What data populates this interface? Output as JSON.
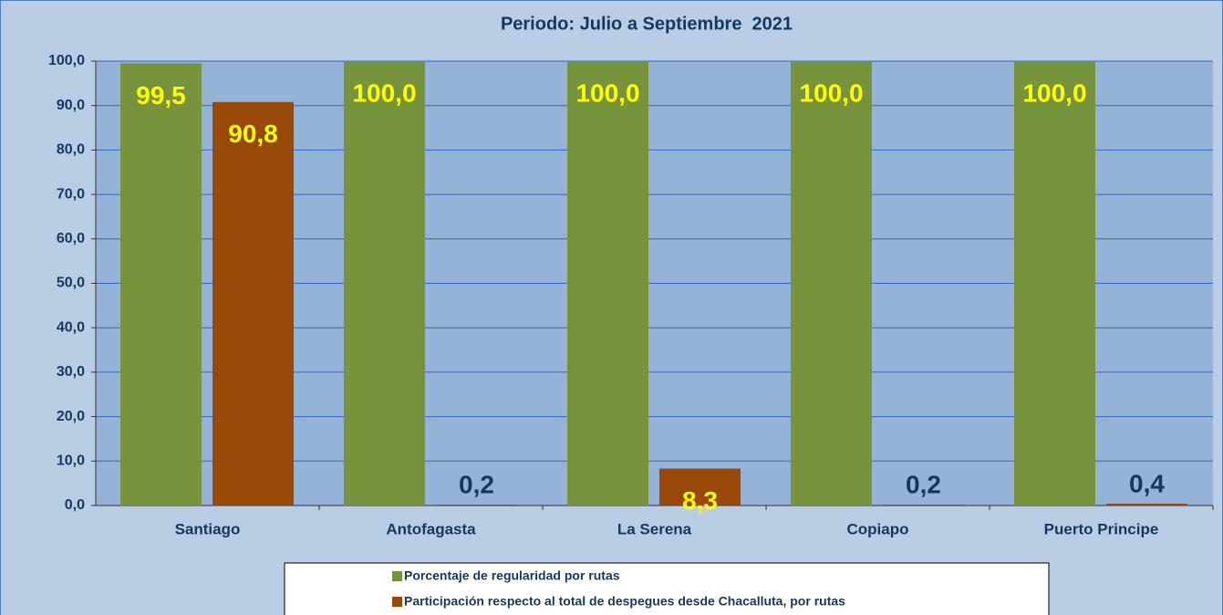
{
  "chart_data": {
    "type": "bar",
    "title": "Periodo: Julio a Septiembre  2021",
    "categories": [
      "Santiago",
      "Antofagasta",
      "La Serena",
      "Copiapo",
      "Puerto Principe"
    ],
    "series": [
      {
        "name": "Porcentaje de regularidad por rutas",
        "color": "#77933c",
        "values": [
          99.5,
          100,
          100,
          100,
          100
        ],
        "value_labels": [
          "99,5",
          "100,0",
          "100,0",
          "100,0",
          "100,0"
        ]
      },
      {
        "name": "Participación respecto al total de despegues desde Chacalluta, por rutas",
        "color": "#984807",
        "values": [
          90.8,
          0.2,
          8.3,
          0.2,
          0.4
        ],
        "value_labels": [
          "90,8",
          "0,2",
          "8,3",
          "0,2",
          "0,4"
        ]
      }
    ],
    "ylim": [
      0,
      100
    ],
    "yticks": [
      {
        "value": 0,
        "label": "0,0"
      },
      {
        "value": 10,
        "label": "10,0"
      },
      {
        "value": 20,
        "label": "20,0"
      },
      {
        "value": 30,
        "label": "30,0"
      },
      {
        "value": 40,
        "label": "40,0"
      },
      {
        "value": 50,
        "label": "50,0"
      },
      {
        "value": 60,
        "label": "60,0"
      },
      {
        "value": 70,
        "label": "70,0"
      },
      {
        "value": 80,
        "label": "80,0"
      },
      {
        "value": 90,
        "label": "90,0"
      },
      {
        "value": 100,
        "label": "100,0"
      }
    ],
    "grid": true,
    "legend": "bottom"
  }
}
